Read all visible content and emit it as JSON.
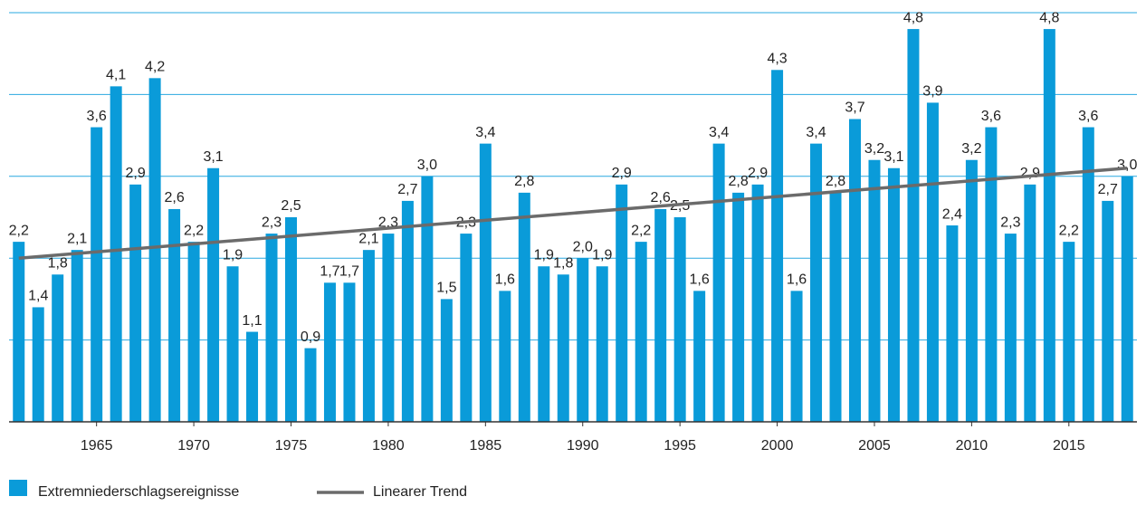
{
  "chart_data": {
    "type": "bar",
    "x": [
      1961,
      1962,
      1963,
      1964,
      1965,
      1966,
      1967,
      1968,
      1969,
      1970,
      1971,
      1972,
      1973,
      1974,
      1975,
      1976,
      1977,
      1978,
      1979,
      1980,
      1981,
      1982,
      1983,
      1984,
      1985,
      1986,
      1987,
      1988,
      1989,
      1990,
      1991,
      1992,
      1993,
      1994,
      1995,
      1996,
      1997,
      1998,
      1999,
      2000,
      2001,
      2002,
      2003,
      2004,
      2005,
      2006,
      2007,
      2008,
      2009,
      2010,
      2011,
      2012,
      2013,
      2014,
      2015,
      2016,
      2017,
      2018
    ],
    "series": [
      {
        "name": "Extremniederschlagsereignisse",
        "color": "#0a9bd9",
        "values": [
          2.2,
          1.4,
          1.8,
          2.1,
          3.6,
          4.1,
          2.9,
          4.2,
          2.6,
          2.2,
          3.1,
          1.9,
          1.1,
          2.3,
          2.5,
          0.9,
          1.7,
          1.7,
          2.1,
          2.3,
          2.7,
          3.0,
          1.5,
          2.3,
          3.4,
          1.6,
          2.8,
          1.9,
          1.8,
          2.0,
          1.9,
          2.9,
          2.2,
          2.6,
          2.5,
          1.6,
          3.4,
          2.8,
          2.9,
          4.3,
          1.6,
          3.4,
          2.8,
          3.7,
          3.2,
          3.1,
          4.8,
          3.9,
          2.4,
          3.2,
          3.6,
          2.3,
          2.9,
          4.8,
          2.2,
          3.6,
          2.7,
          3.0
        ],
        "value_labels": [
          "2,2",
          "1,4",
          "1,8",
          "2,1",
          "3,6",
          "4,1",
          "2,9",
          "4,2",
          "2,6",
          "2,2",
          "3,1",
          "1,9",
          "1,1",
          "2,3",
          "2,5",
          "0,9",
          "1,7",
          "1,7",
          "2,1",
          "2,3",
          "2,7",
          "3,0",
          "1,5",
          "2,3",
          "3,4",
          "1,6",
          "2,8",
          "1,9",
          "1,8",
          "2,0",
          "1,9",
          "2,9",
          "2,2",
          "2,6",
          "2,5",
          "1,6",
          "3,4",
          "2,8",
          "2,9",
          "4,3",
          "1,6",
          "3,4",
          "2,8",
          "3,7",
          "3,2",
          "3,1",
          "4,8",
          "3,9",
          "2,4",
          "3,2",
          "3,6",
          "2,3",
          "2,9",
          "4,8",
          "2,2",
          "3,6",
          "2,7",
          "3,0"
        ]
      },
      {
        "name": "Linearer Trend",
        "color": "#6b6b6b",
        "x": [
          1961,
          2018
        ],
        "values": [
          2.0,
          3.1
        ]
      }
    ],
    "xlim": [
      1960.5,
      2018.5
    ],
    "xticks": [
      1965,
      1970,
      1975,
      1980,
      1985,
      1990,
      1995,
      2000,
      2005,
      2010,
      2015
    ],
    "ylim": [
      0,
      5
    ],
    "yticks": [
      0,
      1,
      2,
      3,
      4,
      5
    ],
    "grid": true,
    "grid_color": "#29a8e0"
  }
}
